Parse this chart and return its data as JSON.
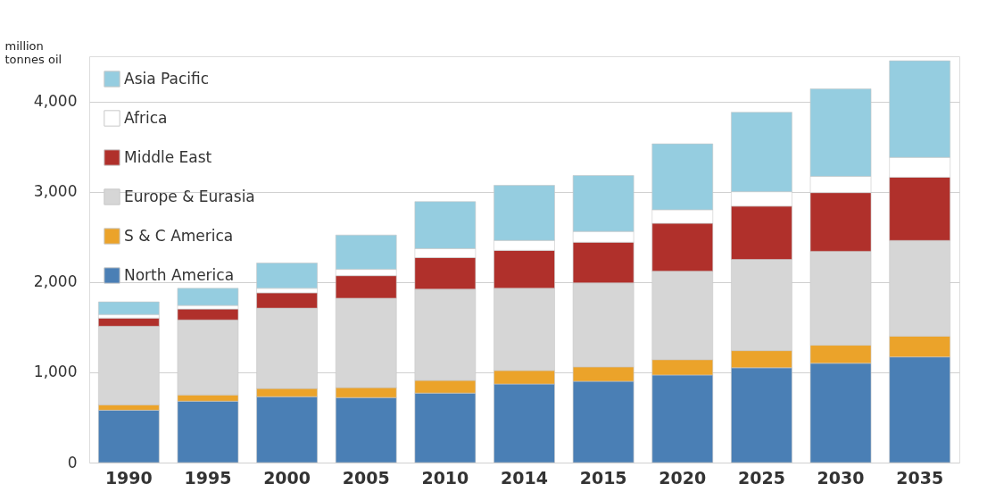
{
  "chart_data": {
    "type": "bar",
    "stacked": true,
    "ylabel": "million tonnes oil",
    "categories": [
      "1990",
      "1995",
      "2000",
      "2005",
      "2010",
      "2014",
      "2015",
      "2020",
      "2025",
      "2030",
      "2035"
    ],
    "series": [
      {
        "name": "North America",
        "color": "#4a7fb5",
        "values": [
          580,
          680,
          730,
          720,
          770,
          870,
          900,
          970,
          1050,
          1100,
          1170
        ]
      },
      {
        "name": "S & C America",
        "color": "#eba32a",
        "values": [
          60,
          70,
          90,
          110,
          140,
          150,
          160,
          170,
          190,
          200,
          230
        ]
      },
      {
        "name": "Europe & Eurasia",
        "color": "#d6d6d6",
        "values": [
          870,
          830,
          890,
          990,
          1010,
          910,
          930,
          980,
          1010,
          1040,
          1060
        ]
      },
      {
        "name": "Middle East",
        "color": "#b0302b",
        "values": [
          90,
          120,
          170,
          250,
          350,
          420,
          450,
          530,
          590,
          650,
          700
        ]
      },
      {
        "name": "Africa",
        "color": "#ffffff",
        "values": [
          40,
          40,
          50,
          70,
          100,
          110,
          120,
          150,
          160,
          180,
          220
        ]
      },
      {
        "name": "Asia Pacific",
        "color": "#95cde0",
        "values": [
          140,
          190,
          280,
          380,
          520,
          610,
          620,
          730,
          880,
          970,
          1070
        ]
      }
    ],
    "ylim": [
      0,
      4500
    ],
    "yticks": [
      0,
      {
        "value": 1000,
        "label": "1,000"
      },
      {
        "value": 2000,
        "label": "2,000"
      },
      {
        "value": 3000,
        "label": "3,000"
      },
      {
        "value": 4000,
        "label": "4,000"
      }
    ],
    "grid": "y",
    "legend": "top left"
  }
}
